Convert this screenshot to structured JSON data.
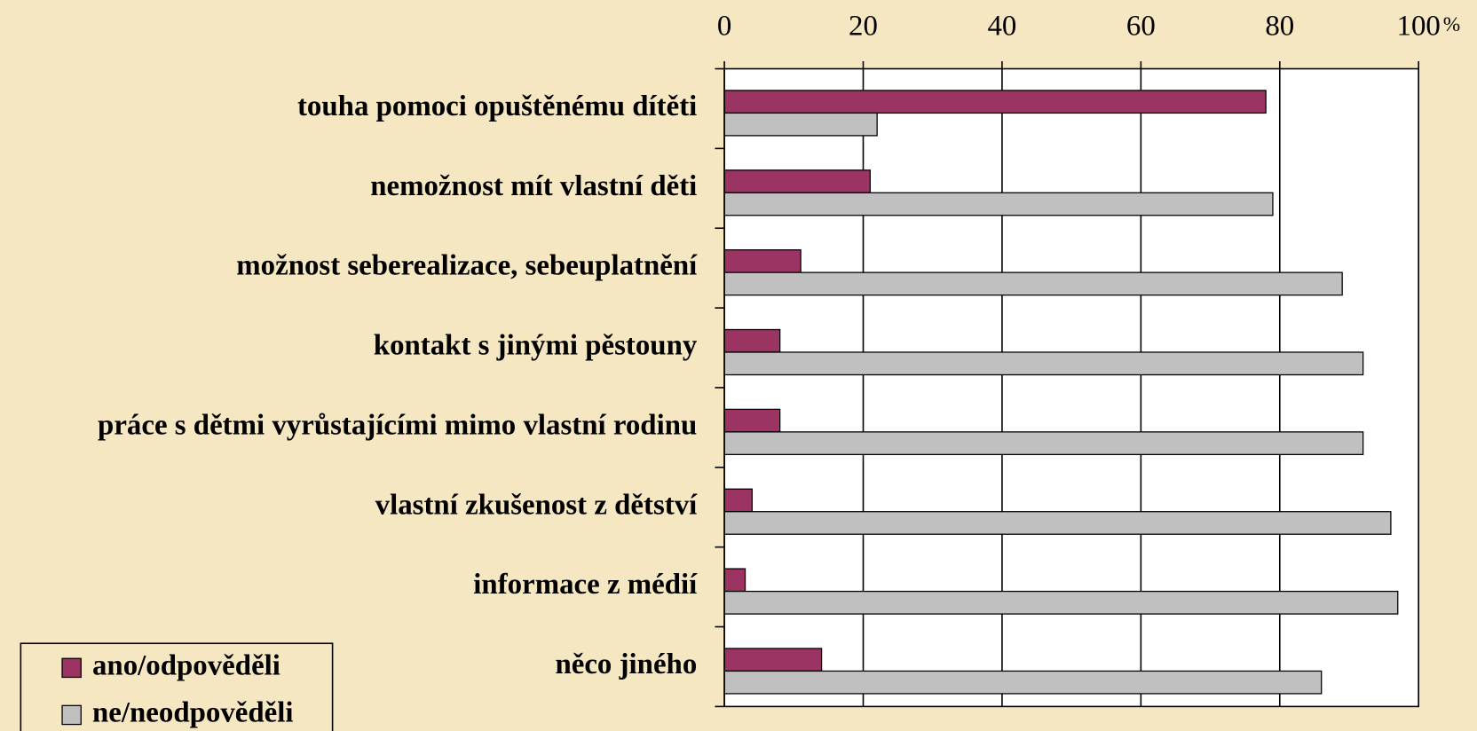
{
  "chart_data": {
    "type": "bar",
    "orientation": "horizontal",
    "categories": [
      "touha pomoci opuštěnému dítěti",
      "nemožnost mít vlastní děti",
      "možnost seberealizace, sebeuplatnění",
      "kontakt s jinými pěstouny",
      "práce s dětmi vyrůstajícími mimo vlastní rodinu",
      "vlastní zkušenost z dětství",
      "informace z médií",
      "něco jiného"
    ],
    "series": [
      {
        "name": "ano/odpověděli",
        "color": "#9b3463",
        "values": [
          78,
          21,
          11,
          8,
          8,
          4,
          3,
          14
        ]
      },
      {
        "name": "ne/neodpověděli",
        "color": "#c0c0c0",
        "values": [
          22,
          79,
          89,
          92,
          92,
          96,
          97,
          86
        ]
      }
    ],
    "xlim": [
      0,
      100
    ],
    "xticks": [
      0,
      20,
      40,
      60,
      80,
      100
    ],
    "xlabel": "%",
    "grid": true,
    "legend": "lower left"
  }
}
